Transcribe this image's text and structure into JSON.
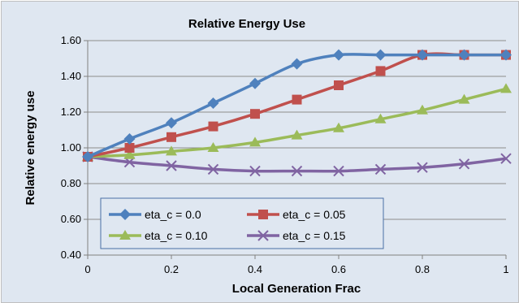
{
  "chart_data": {
    "type": "line",
    "title": "Relative Energy Use",
    "xlabel": "Local Generation Frac",
    "ylabel": "Relative energy use",
    "xlim": [
      0,
      1
    ],
    "ylim": [
      0.4,
      1.6
    ],
    "xticks": [
      "0",
      "0.2",
      "0.4",
      "0.6",
      "0.8",
      "1"
    ],
    "yticks": [
      "0.40",
      "0.60",
      "0.80",
      "1.00",
      "1.20",
      "1.40",
      "1.60"
    ],
    "grid": "horizontal",
    "legend_position": "bottom-left",
    "x": [
      0,
      0.1,
      0.2,
      0.3,
      0.4,
      0.5,
      0.6,
      0.7,
      0.8,
      0.9,
      1.0
    ],
    "series": [
      {
        "name": "eta_c = 0.0",
        "color": "#4f81bd",
        "marker": "diamond",
        "values": [
          0.95,
          1.05,
          1.14,
          1.25,
          1.36,
          1.47,
          1.52,
          1.52,
          1.52,
          1.52,
          1.52
        ]
      },
      {
        "name": "eta_c = 0.05",
        "color": "#c0504d",
        "marker": "square",
        "values": [
          0.95,
          1.0,
          1.06,
          1.12,
          1.19,
          1.27,
          1.35,
          1.43,
          1.52,
          1.52,
          1.52
        ]
      },
      {
        "name": "eta_c = 0.10",
        "color": "#9bbb59",
        "marker": "triangle",
        "values": [
          0.95,
          0.96,
          0.98,
          1.0,
          1.03,
          1.07,
          1.11,
          1.16,
          1.21,
          1.27,
          1.33
        ]
      },
      {
        "name": "eta_c = 0.15",
        "color": "#8064a2",
        "marker": "x",
        "values": [
          0.95,
          0.92,
          0.9,
          0.88,
          0.87,
          0.87,
          0.87,
          0.88,
          0.89,
          0.91,
          0.94
        ]
      }
    ]
  }
}
